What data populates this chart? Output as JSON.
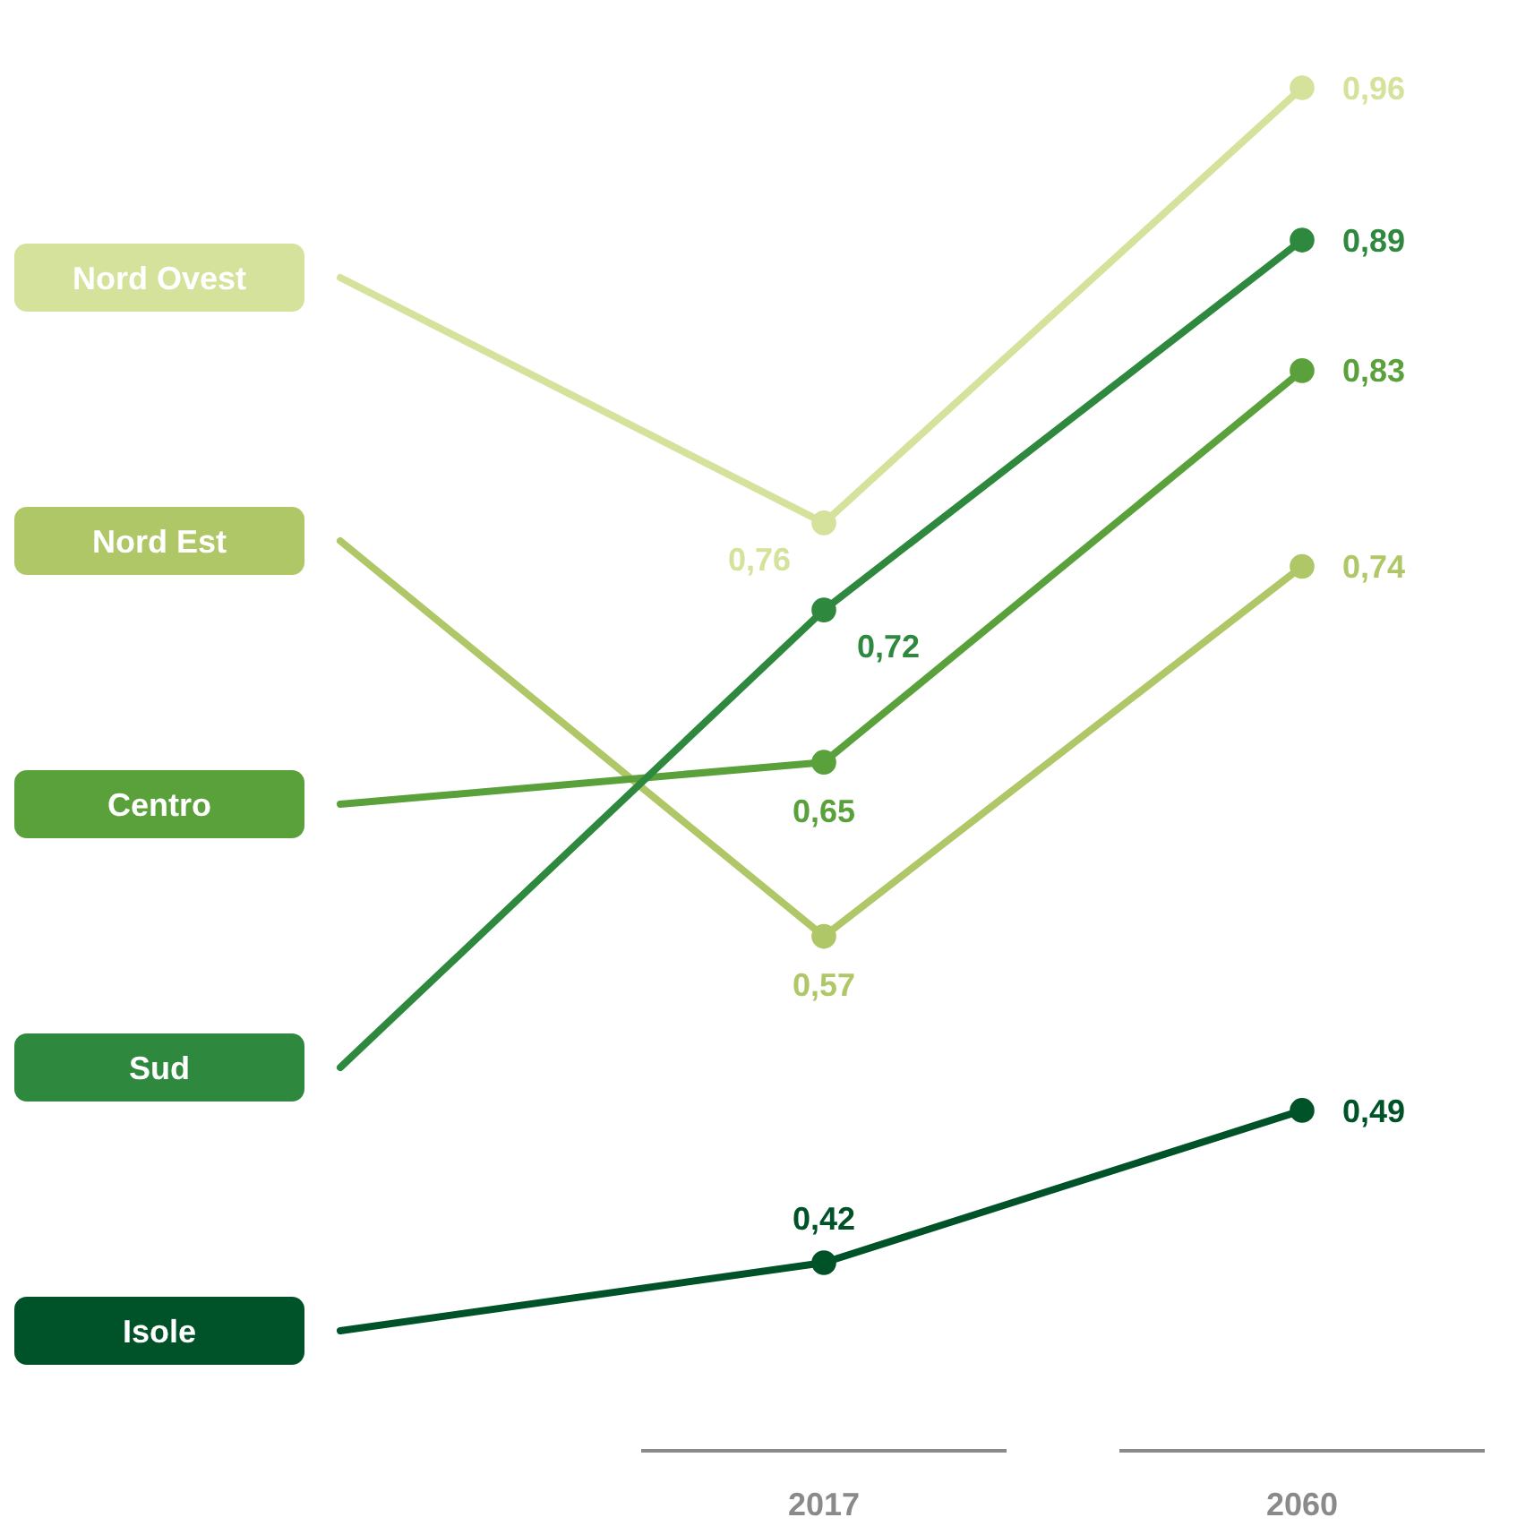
{
  "chart_data": {
    "type": "line",
    "categories": [
      "2017",
      "2060"
    ],
    "series": [
      {
        "name": "Nord Ovest",
        "color": "#d4e29c",
        "values": [
          0.76,
          0.96
        ],
        "value_labels": [
          "0,76",
          "0,96"
        ]
      },
      {
        "name": "Nord Est",
        "color": "#afc767",
        "values": [
          0.57,
          0.74
        ],
        "value_labels": [
          "0,57",
          "0,74"
        ]
      },
      {
        "name": "Centro",
        "color": "#5aa13c",
        "values": [
          0.65,
          0.83
        ],
        "value_labels": [
          "0,65",
          "0,83"
        ]
      },
      {
        "name": "Sud",
        "color": "#2e883e",
        "values": [
          0.72,
          0.89
        ],
        "value_labels": [
          "0,72",
          "0,89"
        ]
      },
      {
        "name": "Isole",
        "color": "#005228",
        "values": [
          0.42,
          0.49
        ],
        "value_labels": [
          "0,42",
          "0,49"
        ]
      }
    ],
    "tick_labels": "x",
    "legend": "left",
    "marker": "circle"
  }
}
